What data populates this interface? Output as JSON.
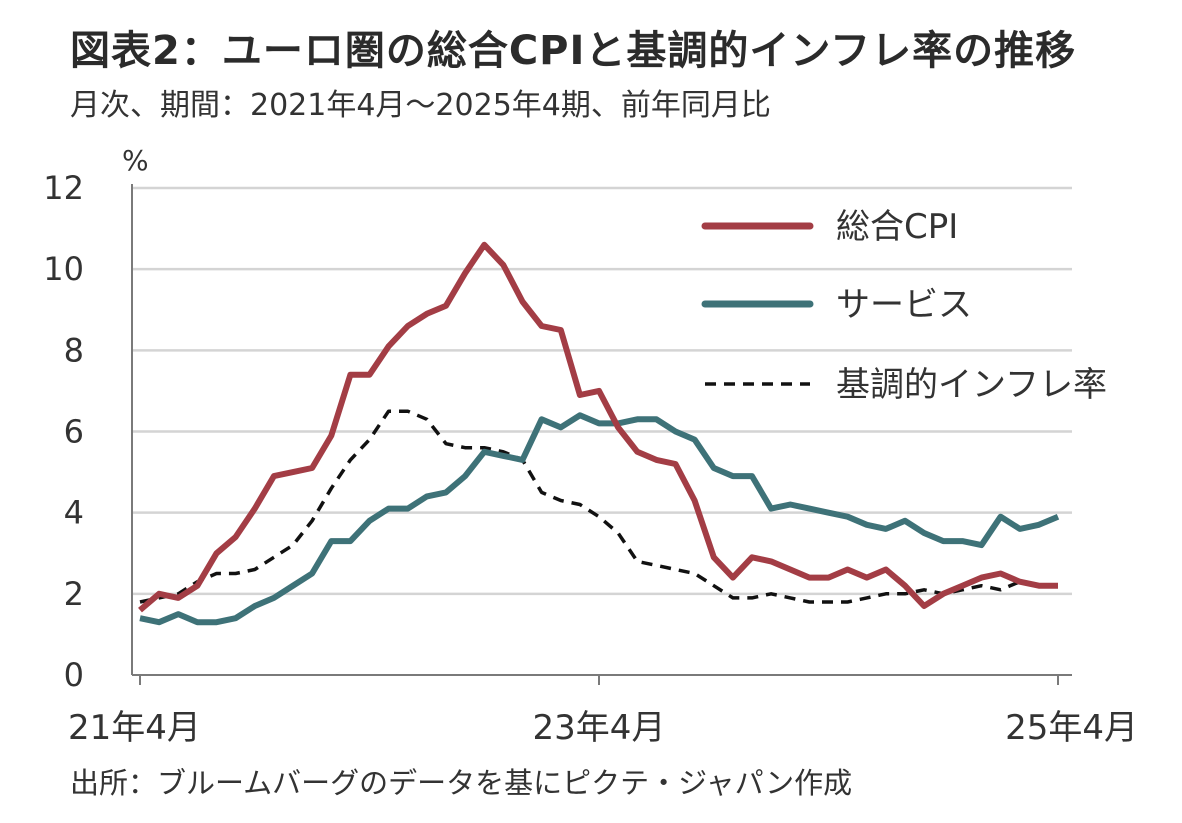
{
  "header": {
    "title": "図表2：ユーロ圏の総合CPIと基調的インフレ率の推移",
    "subtitle": "月次、期間：2021年4月〜2025年4期、前年同月比"
  },
  "footer": {
    "source": "出所：ブルームバーグのデータを基にピクテ・ジャパン作成"
  },
  "chart_data": {
    "type": "line",
    "ylabel": "%",
    "ylim": [
      0,
      12
    ],
    "yticks": [
      0,
      2,
      4,
      6,
      8,
      10,
      12
    ],
    "xlim": [
      0,
      48
    ],
    "xticks": [
      {
        "label": "21年4月",
        "index": 0
      },
      {
        "label": "23年4月",
        "index": 24
      },
      {
        "label": "25年4月",
        "index": 48
      }
    ],
    "grid": "horizontal",
    "legend_position": "top-right",
    "series": [
      {
        "name": "総合CPI",
        "color": "#a33d45",
        "style": "solid",
        "values": [
          1.6,
          2.0,
          1.9,
          2.2,
          3.0,
          3.4,
          4.1,
          4.9,
          5.0,
          5.1,
          5.9,
          7.4,
          7.4,
          8.1,
          8.6,
          8.9,
          9.1,
          9.9,
          10.6,
          10.1,
          9.2,
          8.6,
          8.5,
          6.9,
          7.0,
          6.1,
          5.5,
          5.3,
          5.2,
          4.3,
          2.9,
          2.4,
          2.9,
          2.8,
          2.6,
          2.4,
          2.4,
          2.6,
          2.4,
          2.6,
          2.2,
          1.7,
          2.0,
          2.2,
          2.4,
          2.5,
          2.3,
          2.2,
          2.2
        ]
      },
      {
        "name": "サービス",
        "color": "#3e7278",
        "style": "solid",
        "values": [
          1.4,
          1.3,
          1.5,
          1.3,
          1.3,
          1.4,
          1.7,
          1.9,
          2.2,
          2.5,
          3.3,
          3.3,
          3.8,
          4.1,
          4.1,
          4.4,
          4.5,
          4.9,
          5.5,
          5.4,
          5.3,
          6.3,
          6.1,
          6.4,
          6.2,
          6.2,
          6.3,
          6.3,
          6.0,
          5.8,
          5.1,
          4.9,
          4.9,
          4.1,
          4.2,
          4.1,
          4.0,
          3.9,
          3.7,
          3.6,
          3.8,
          3.5,
          3.3,
          3.3,
          3.2,
          3.9,
          3.6,
          3.7,
          3.9
        ]
      },
      {
        "name": "基調的インフレ率",
        "color": "#111111",
        "style": "dashed",
        "values": [
          1.8,
          1.9,
          2.0,
          2.3,
          2.5,
          2.5,
          2.6,
          2.9,
          3.2,
          3.8,
          4.6,
          5.3,
          5.8,
          6.5,
          6.5,
          6.3,
          5.7,
          5.6,
          5.6,
          5.5,
          5.3,
          4.5,
          4.3,
          4.2,
          3.9,
          3.5,
          2.8,
          2.7,
          2.6,
          2.5,
          2.2,
          1.9,
          1.9,
          2.0,
          1.9,
          1.8,
          1.8,
          1.8,
          1.9,
          2.0,
          2.0,
          2.1,
          2.0,
          2.1,
          2.2,
          2.1,
          2.3,
          2.2,
          2.2
        ]
      }
    ]
  }
}
